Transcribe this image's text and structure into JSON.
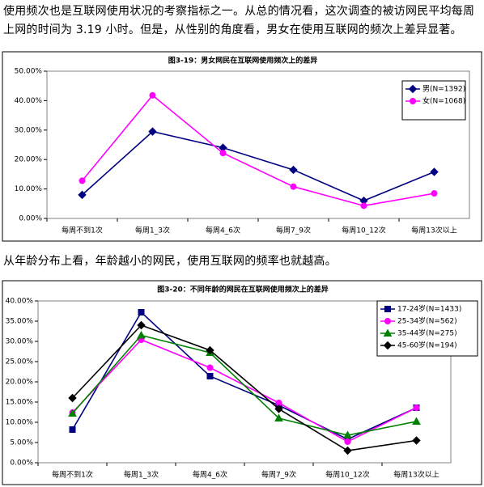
{
  "paragraphs": [
    "使用频次也是互联网使用状况的考察指标之一。从总的情况看，这次调查的被访网民平均每周上网的时间为 3.19 小时。但是，从性别的角度看，男女在使用互联网的频次上差异显著。",
    "从年龄分布上看，年龄越小的网民，使用互联网的频率也就越高。"
  ],
  "chart_data": [
    {
      "type": "line",
      "title": "图3-19：男女网民在互联网使用频次上的差异",
      "categories": [
        "每周不到1次",
        "每周1_3次",
        "每周4_6次",
        "每周7_9次",
        "每周10_12次",
        "每周13次以上"
      ],
      "series": [
        {
          "name": "男(N=1392)",
          "color": "#000080",
          "marker": "diamond",
          "values": [
            8.0,
            29.5,
            24.0,
            16.5,
            6.0,
            15.8
          ]
        },
        {
          "name": "女(N=1068)",
          "color": "#ff00ff",
          "marker": "circle",
          "values": [
            12.8,
            41.8,
            22.2,
            10.8,
            4.3,
            8.5
          ]
        }
      ],
      "ylim": [
        0,
        50
      ],
      "yticks": [
        {
          "value": 0,
          "label": "0.00%"
        },
        {
          "value": 10,
          "label": "10.00%"
        },
        {
          "value": 20,
          "label": "20.00%"
        },
        {
          "value": 30,
          "label": "30.00%"
        },
        {
          "value": 40,
          "label": "40.00%"
        },
        {
          "value": 50,
          "label": "50.00%"
        }
      ]
    },
    {
      "type": "line",
      "title": "图3-20：不同年龄的网民在互联网使用频次上的差异",
      "categories": [
        "每周不到1次",
        "每周1_3次",
        "每周4_6次",
        "每周7_9次",
        "每周10_12次",
        "每周13次以上"
      ],
      "series": [
        {
          "name": "17-24岁(N=1433)",
          "color": "#000080",
          "marker": "square",
          "values": [
            8.2,
            37.2,
            21.4,
            14.2,
            5.8,
            13.6
          ]
        },
        {
          "name": "25-34岁(N=562)",
          "color": "#ff00ff",
          "marker": "circle",
          "values": [
            12.4,
            30.4,
            23.5,
            14.8,
            5.2,
            13.6
          ]
        },
        {
          "name": "35-44岁(N=275)",
          "color": "#008000",
          "marker": "triangle",
          "values": [
            12.2,
            31.5,
            27.2,
            11.0,
            6.8,
            10.2
          ]
        },
        {
          "name": "45-60岁(N=194)",
          "color": "#000000",
          "marker": "diamond",
          "values": [
            16.0,
            34.0,
            27.8,
            13.3,
            3.0,
            5.5
          ]
        }
      ],
      "ylim": [
        0,
        40
      ],
      "yticks": [
        {
          "value": 0,
          "label": "0.00%"
        },
        {
          "value": 5,
          "label": "5.00%"
        },
        {
          "value": 10,
          "label": "10.00%"
        },
        {
          "value": 15,
          "label": "15.00%"
        },
        {
          "value": 20,
          "label": "20.00%"
        },
        {
          "value": 25,
          "label": "25.00%"
        },
        {
          "value": 30,
          "label": "30.00%"
        },
        {
          "value": 35,
          "label": "35.00%"
        },
        {
          "value": 40,
          "label": "40.00%"
        }
      ]
    }
  ]
}
